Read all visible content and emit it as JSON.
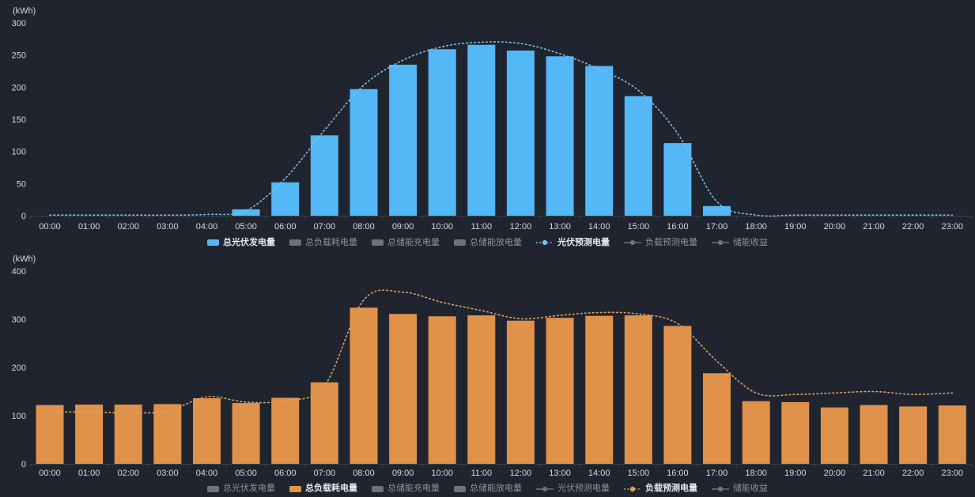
{
  "colors": {
    "background": "#20242e",
    "pv_bar": "#54b8f7",
    "pv_line": "#74c0f0",
    "load_bar": "#e0914a",
    "load_line": "#dca45f",
    "inactive": "#6e7379",
    "active_text": "#e4e7ec",
    "inactive_text": "#8d929b",
    "axis_text": "#d5d9e0",
    "axis_line": "#3a4452"
  },
  "chart_data": [
    {
      "type": "bar",
      "title": "",
      "unit": "(kWh)",
      "ylim": [
        0,
        300
      ],
      "y_ticks": [
        0,
        50,
        100,
        150,
        200,
        250,
        300
      ],
      "grid": false,
      "legend_position": "bottom",
      "categories": [
        "00:00",
        "01:00",
        "02:00",
        "03:00",
        "04:00",
        "05:00",
        "06:00",
        "07:00",
        "08:00",
        "09:00",
        "10:00",
        "11:00",
        "12:00",
        "13:00",
        "14:00",
        "15:00",
        "16:00",
        "17:00",
        "18:00",
        "19:00",
        "20:00",
        "21:00",
        "22:00",
        "23:00"
      ],
      "series": [
        {
          "name": "总光伏发电量",
          "type": "bar",
          "color": "#54b8f7",
          "values": [
            0,
            0,
            0,
            0,
            0,
            10,
            52,
            125,
            197,
            235,
            259,
            266,
            257,
            248,
            233,
            186,
            113,
            15,
            0,
            0,
            0,
            0,
            0,
            0
          ]
        },
        {
          "name": "光伏预测电量",
          "type": "line",
          "style": "dotted",
          "color": "#74c0f0",
          "values": [
            1,
            1,
            1,
            1,
            2,
            8,
            58,
            133,
            203,
            242,
            263,
            270,
            268,
            252,
            228,
            195,
            128,
            22,
            1,
            1,
            1,
            1,
            1,
            1
          ]
        }
      ],
      "legend": [
        {
          "id": "pv-generation",
          "label": "总光伏发电量",
          "type": "bar",
          "active": true,
          "color": "#54b8f7"
        },
        {
          "id": "load-consumption",
          "label": "总负载耗电量",
          "type": "bar",
          "active": false
        },
        {
          "id": "storage-charge",
          "label": "总储能充电量",
          "type": "bar",
          "active": false
        },
        {
          "id": "storage-discharge",
          "label": "总储能放电量",
          "type": "bar",
          "active": false
        },
        {
          "id": "pv-forecast",
          "label": "光伏预测电量",
          "type": "line",
          "active": true,
          "color": "#74c0f0"
        },
        {
          "id": "load-forecast",
          "label": "负载预测电量",
          "type": "line",
          "active": false
        },
        {
          "id": "storage-revenue",
          "label": "储能收益",
          "type": "line",
          "active": false
        }
      ]
    },
    {
      "type": "bar",
      "title": "",
      "unit": "(kWh)",
      "ylim": [
        0,
        400
      ],
      "y_ticks": [
        0,
        100,
        200,
        300,
        400
      ],
      "grid": false,
      "legend_position": "bottom",
      "categories": [
        "00:00",
        "01:00",
        "02:00",
        "03:00",
        "04:00",
        "05:00",
        "06:00",
        "07:00",
        "08:00",
        "09:00",
        "10:00",
        "11:00",
        "12:00",
        "13:00",
        "14:00",
        "15:00",
        "16:00",
        "17:00",
        "18:00",
        "19:00",
        "20:00",
        "21:00",
        "22:00",
        "23:00"
      ],
      "series": [
        {
          "name": "总负载耗电量",
          "type": "bar",
          "color": "#e0914a",
          "values": [
            122,
            123,
            123,
            124,
            136,
            126,
            137,
            169,
            324,
            311,
            306,
            308,
            297,
            303,
            307,
            308,
            286,
            188,
            130,
            128,
            117,
            122,
            119,
            121
          ]
        },
        {
          "name": "负载预测电量",
          "type": "line",
          "style": "dotted",
          "color": "#dca45f",
          "values": [
            108,
            107,
            106,
            109,
            139,
            128,
            131,
            162,
            340,
            356,
            335,
            318,
            301,
            308,
            314,
            311,
            291,
            213,
            147,
            144,
            147,
            150,
            144,
            147
          ]
        }
      ],
      "legend": [
        {
          "id": "pv-generation",
          "label": "总光伏发电量",
          "type": "bar",
          "active": false
        },
        {
          "id": "load-consumption",
          "label": "总负载耗电量",
          "type": "bar",
          "active": true,
          "color": "#e0914a"
        },
        {
          "id": "storage-charge",
          "label": "总储能充电量",
          "type": "bar",
          "active": false
        },
        {
          "id": "storage-discharge",
          "label": "总储能放电量",
          "type": "bar",
          "active": false
        },
        {
          "id": "pv-forecast",
          "label": "光伏预测电量",
          "type": "line",
          "active": false
        },
        {
          "id": "load-forecast",
          "label": "负载预测电量",
          "type": "line",
          "active": true,
          "color": "#dca45f"
        },
        {
          "id": "storage-revenue",
          "label": "储能收益",
          "type": "line",
          "active": false
        }
      ]
    }
  ]
}
